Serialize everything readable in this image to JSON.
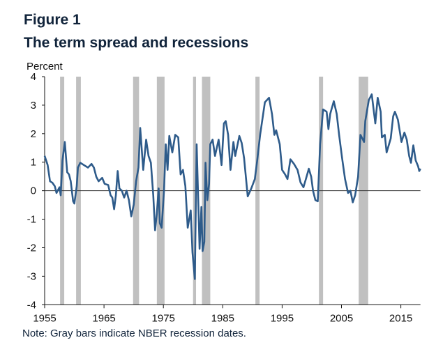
{
  "figure_label": "Figure 1",
  "title": "The term spread and recessions",
  "note": "Note: Gray bars indicate NBER recession dates.",
  "chart_data": {
    "type": "line",
    "title": "The term spread and recessions",
    "ylabel": "Percent",
    "xlabel": "",
    "xlim": [
      1955,
      2018.3
    ],
    "ylim": [
      -4,
      4
    ],
    "x_ticks": [
      "1955",
      "1965",
      "1975",
      "1985",
      "1995",
      "2005",
      "2015"
    ],
    "y_ticks": [
      "4",
      "3",
      "2",
      "1",
      "0",
      "-1",
      "-2",
      "-3",
      "-4"
    ],
    "grid": false,
    "zero_line": true,
    "line_color": "#2e5b8a",
    "recession_color": "#c0c0c0",
    "recessions": [
      [
        1957.6,
        1958.3
      ],
      [
        1960.3,
        1961.1
      ],
      [
        1969.9,
        1970.9
      ],
      [
        1973.9,
        1975.2
      ],
      [
        1980.0,
        1980.5
      ],
      [
        1981.5,
        1982.9
      ],
      [
        1990.5,
        1991.2
      ],
      [
        2001.2,
        2001.9
      ],
      [
        2007.9,
        2009.5
      ]
    ],
    "series": [
      {
        "x": [
          1955.0,
          1955.5,
          1955.9,
          1956.3,
          1956.7,
          1957.0,
          1957.5,
          1957.7,
          1958.0,
          1958.4,
          1958.8,
          1959.1,
          1959.4,
          1959.8,
          1960.0,
          1960.4,
          1960.6,
          1961.0,
          1961.6,
          1962.3,
          1962.9,
          1963.3,
          1963.7,
          1964.1,
          1964.7,
          1965.1,
          1965.7,
          1966.1,
          1966.4,
          1966.7,
          1967.0,
          1967.3,
          1967.6,
          1968.0,
          1968.4,
          1968.8,
          1969.2,
          1969.6,
          1970.0,
          1970.4,
          1970.8,
          1971.1,
          1971.6,
          1972.1,
          1972.5,
          1972.9,
          1973.3,
          1973.6,
          1973.9,
          1974.2,
          1974.4,
          1974.7,
          1975.1,
          1975.4,
          1975.7,
          1976.0,
          1976.5,
          1977.0,
          1977.5,
          1977.9,
          1978.3,
          1978.7,
          1979.1,
          1979.6,
          1979.9,
          1980.3,
          1980.6,
          1981.1,
          1981.4,
          1981.6,
          1981.9,
          1982.1,
          1982.4,
          1982.7,
          1982.9,
          1983.3,
          1983.7,
          1984.3,
          1984.8,
          1985.2,
          1985.5,
          1985.9,
          1986.3,
          1986.8,
          1987.1,
          1987.8,
          1988.2,
          1988.6,
          1989.2,
          1989.8,
          1990.4,
          1990.8,
          1991.3,
          1992.1,
          1992.8,
          1993.3,
          1993.7,
          1994.0,
          1994.6,
          1995.0,
          1995.5,
          1995.9,
          1996.4,
          1997.0,
          1997.6,
          1998.1,
          1998.6,
          1999.0,
          1999.5,
          1999.9,
          2000.2,
          2000.6,
          2001.0,
          2001.4,
          2001.9,
          2002.5,
          2002.8,
          2003.1,
          2003.7,
          2004.2,
          2004.6,
          2005.1,
          2005.6,
          2006.1,
          2006.5,
          2006.9,
          2007.3,
          2007.8,
          2008.2,
          2008.8,
          2009.0,
          2009.6,
          2010.1,
          2010.7,
          2011.1,
          2011.6,
          2011.8,
          2012.3,
          2012.6,
          2013.3,
          2013.7,
          2014.0,
          2014.5,
          2015.1,
          2015.6,
          2016.0,
          2016.4,
          2016.7,
          2017.1,
          2017.5,
          2017.9,
          2018.1,
          2018.3
        ],
        "y": [
          1.22,
          0.9,
          0.33,
          0.28,
          0.16,
          -0.08,
          0.12,
          -0.16,
          1.06,
          1.71,
          0.65,
          0.57,
          0.33,
          -0.37,
          -0.45,
          0.16,
          0.81,
          0.98,
          0.9,
          0.81,
          0.94,
          0.81,
          0.49,
          0.33,
          0.45,
          0.24,
          0.2,
          -0.16,
          -0.24,
          -0.65,
          -0.16,
          0.69,
          0.08,
          0,
          -0.24,
          0,
          -0.33,
          -0.9,
          -0.49,
          0.33,
          0.81,
          2.2,
          0.73,
          1.79,
          1.22,
          0.98,
          -0.16,
          -1.39,
          -0.81,
          0.08,
          -1.14,
          -1.3,
          0,
          1.63,
          0.73,
          1.92,
          1.34,
          1.96,
          1.87,
          0.57,
          0.73,
          0.16,
          -1.3,
          -0.69,
          -2.16,
          -3.1,
          1.63,
          -2.04,
          -0.57,
          -2.12,
          -1.79,
          0.98,
          -0.33,
          0.24,
          1.63,
          1.79,
          1.22,
          1.79,
          0.9,
          2.36,
          2.44,
          1.96,
          0.73,
          1.71,
          1.22,
          1.92,
          1.67,
          1.14,
          -0.2,
          0.08,
          0.41,
          1.06,
          1.96,
          3.1,
          3.26,
          2.69,
          1.96,
          2.12,
          1.63,
          0.73,
          0.57,
          0.41,
          1.1,
          0.94,
          0.73,
          0.29,
          0.12,
          0.41,
          0.77,
          0.49,
          0,
          -0.33,
          -0.37,
          1.63,
          2.85,
          2.77,
          2.16,
          2.69,
          3.14,
          2.69,
          1.96,
          1.14,
          0.41,
          -0.08,
          0,
          -0.41,
          -0.16,
          0.49,
          1.96,
          1.71,
          2.44,
          3.18,
          3.38,
          2.36,
          3.26,
          2.77,
          1.87,
          1.96,
          1.34,
          1.83,
          2.61,
          2.77,
          2.49,
          1.71,
          2.04,
          1.79,
          1.22,
          0.98,
          1.59,
          1.06,
          0.86,
          0.69,
          0.77
        ]
      }
    ]
  }
}
